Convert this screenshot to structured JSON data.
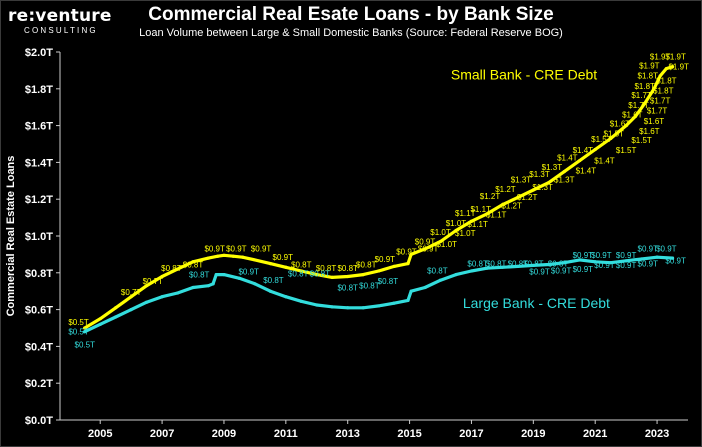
{
  "brand": {
    "name": "re:venture",
    "tagline": "CONSULTING"
  },
  "chart_data": {
    "type": "line",
    "title": "Commercial Real Esate Loans - by Bank Size",
    "subtitle": "Loan Volume between Large & Small Domestic Banks (Source: Federal Reserve BOG)",
    "xlabel": "",
    "ylabel": "Commercial Real Estate Loans",
    "ylim": [
      0,
      2.0
    ],
    "xlim": [
      2003.7,
      2024.0
    ],
    "yticks": [
      0,
      0.2,
      0.4,
      0.6,
      0.8,
      1.0,
      1.2,
      1.4,
      1.6,
      1.8,
      2.0
    ],
    "ytick_labels": [
      "$0.0T",
      "$0.2T",
      "$0.4T",
      "$0.6T",
      "$0.8T",
      "$1.0T",
      "$1.2T",
      "$1.4T",
      "$1.6T",
      "$1.8T",
      "$2.0T"
    ],
    "xticks": [
      2005,
      2007,
      2009,
      2011,
      2013,
      2015,
      2017,
      2019,
      2021,
      2023
    ],
    "xtick_labels": [
      "2005",
      "2007",
      "2009",
      "2011",
      "2013",
      "2015",
      "2017",
      "2019",
      "2021",
      "2023"
    ],
    "grid": false,
    "series": [
      {
        "name": "Small Bank - CRE Debt",
        "color": "#ffff00",
        "x": [
          2004.5,
          2005.0,
          2005.5,
          2006.0,
          2006.5,
          2007.0,
          2007.5,
          2008.0,
          2008.5,
          2008.8,
          2009.0,
          2009.3,
          2009.6,
          2010.0,
          2010.5,
          2011.0,
          2011.5,
          2012.0,
          2012.5,
          2013.0,
          2013.5,
          2014.0,
          2014.5,
          2014.95,
          2015.05,
          2015.5,
          2016.0,
          2016.5,
          2017.0,
          2017.5,
          2018.0,
          2018.5,
          2019.0,
          2019.5,
          2020.0,
          2020.5,
          2021.0,
          2021.5,
          2022.0,
          2022.3,
          2022.6,
          2022.9,
          2023.1,
          2023.3,
          2023.5
        ],
        "values": [
          0.5,
          0.55,
          0.61,
          0.67,
          0.73,
          0.78,
          0.82,
          0.86,
          0.88,
          0.89,
          0.895,
          0.89,
          0.885,
          0.87,
          0.85,
          0.83,
          0.81,
          0.79,
          0.775,
          0.78,
          0.79,
          0.81,
          0.835,
          0.85,
          0.9,
          0.93,
          0.97,
          1.03,
          1.08,
          1.12,
          1.17,
          1.21,
          1.25,
          1.29,
          1.35,
          1.41,
          1.47,
          1.53,
          1.6,
          1.65,
          1.72,
          1.8,
          1.87,
          1.91,
          1.92
        ]
      },
      {
        "name": "Large Bank - CRE Debt",
        "color": "#33dddd",
        "x": [
          2004.5,
          2005.0,
          2005.5,
          2006.0,
          2006.5,
          2007.0,
          2007.5,
          2008.0,
          2008.5,
          2008.65,
          2008.75,
          2009.0,
          2009.5,
          2010.0,
          2010.5,
          2011.0,
          2011.5,
          2012.0,
          2012.5,
          2013.0,
          2013.5,
          2014.0,
          2014.5,
          2014.95,
          2015.05,
          2015.5,
          2016.0,
          2016.5,
          2017.0,
          2017.5,
          2018.0,
          2018.5,
          2019.0,
          2019.5,
          2020.0,
          2020.5,
          2021.0,
          2021.5,
          2022.0,
          2022.5,
          2023.0,
          2023.5
        ],
        "values": [
          0.48,
          0.52,
          0.56,
          0.6,
          0.64,
          0.67,
          0.69,
          0.72,
          0.73,
          0.74,
          0.79,
          0.79,
          0.77,
          0.74,
          0.7,
          0.67,
          0.645,
          0.625,
          0.615,
          0.61,
          0.61,
          0.62,
          0.635,
          0.65,
          0.7,
          0.72,
          0.76,
          0.79,
          0.81,
          0.825,
          0.83,
          0.835,
          0.84,
          0.845,
          0.855,
          0.87,
          0.86,
          0.855,
          0.865,
          0.875,
          0.885,
          0.88
        ]
      }
    ],
    "annotations": [
      {
        "text": "Small Bank - CRE Debt",
        "series": 0,
        "x": 2018.7,
        "y": 1.85
      },
      {
        "text": "Large Bank - CRE Debt",
        "series": 1,
        "x": 2019.1,
        "y": 0.61
      }
    ],
    "data_labels": [
      {
        "series": 0,
        "x": 2004.3,
        "y": 0.515,
        "text": "$0.5T"
      },
      {
        "series": 0,
        "x": 2006.0,
        "y": 0.68,
        "text": "$0.7T"
      },
      {
        "series": 0,
        "x": 2006.7,
        "y": 0.74,
        "text": "$0.7T"
      },
      {
        "series": 0,
        "x": 2007.3,
        "y": 0.81,
        "text": "$0.8T"
      },
      {
        "series": 0,
        "x": 2008.0,
        "y": 0.83,
        "text": "$0.8T"
      },
      {
        "series": 0,
        "x": 2008.7,
        "y": 0.915,
        "text": "$0.9T"
      },
      {
        "series": 0,
        "x": 2009.4,
        "y": 0.915,
        "text": "$0.9T"
      },
      {
        "series": 0,
        "x": 2010.2,
        "y": 0.915,
        "text": "$0.9T"
      },
      {
        "series": 0,
        "x": 2010.9,
        "y": 0.87,
        "text": "$0.9T"
      },
      {
        "series": 0,
        "x": 2011.5,
        "y": 0.83,
        "text": "$0.8T"
      },
      {
        "series": 0,
        "x": 2012.3,
        "y": 0.81,
        "text": "$0.8T"
      },
      {
        "series": 0,
        "x": 2013.0,
        "y": 0.81,
        "text": "$0.8T"
      },
      {
        "series": 0,
        "x": 2013.6,
        "y": 0.83,
        "text": "$0.8T"
      },
      {
        "series": 0,
        "x": 2014.2,
        "y": 0.86,
        "text": "$0.9T"
      },
      {
        "series": 0,
        "x": 2014.9,
        "y": 0.9,
        "text": "$0.9T"
      },
      {
        "series": 0,
        "x": 2015.5,
        "y": 0.955,
        "text": "$0.9T"
      },
      {
        "series": 0,
        "x": 2016.0,
        "y": 1.005,
        "text": "$1.0T"
      },
      {
        "series": 0,
        "x": 2016.5,
        "y": 1.055,
        "text": "$1.0T"
      },
      {
        "series": 0,
        "x": 2016.8,
        "y": 1.11,
        "text": "$1.1T"
      },
      {
        "series": 0,
        "x": 2017.3,
        "y": 1.13,
        "text": "$1.1T"
      },
      {
        "series": 0,
        "x": 2017.6,
        "y": 1.2,
        "text": "$1.2T"
      },
      {
        "series": 0,
        "x": 2018.1,
        "y": 1.24,
        "text": "$1.2T"
      },
      {
        "series": 0,
        "x": 2018.6,
        "y": 1.29,
        "text": "$1.3T"
      },
      {
        "series": 0,
        "x": 2019.2,
        "y": 1.32,
        "text": "$1.3T"
      },
      {
        "series": 0,
        "x": 2019.6,
        "y": 1.36,
        "text": "$1.3T"
      },
      {
        "series": 0,
        "x": 2020.1,
        "y": 1.41,
        "text": "$1.4T"
      },
      {
        "series": 0,
        "x": 2020.6,
        "y": 1.45,
        "text": "$1.4T"
      },
      {
        "series": 0,
        "x": 2021.2,
        "y": 1.51,
        "text": "$1.5T"
      },
      {
        "series": 0,
        "x": 2021.6,
        "y": 1.54,
        "text": "$1.5T"
      },
      {
        "series": 0,
        "x": 2021.8,
        "y": 1.595,
        "text": "$1.6T"
      },
      {
        "series": 0,
        "x": 2022.2,
        "y": 1.645,
        "text": "$1.6T"
      },
      {
        "series": 0,
        "x": 2022.4,
        "y": 1.695,
        "text": "$1.7T"
      },
      {
        "series": 0,
        "x": 2022.5,
        "y": 1.75,
        "text": "$1.7T"
      },
      {
        "series": 0,
        "x": 2022.6,
        "y": 1.8,
        "text": "$1.8T"
      },
      {
        "series": 0,
        "x": 2022.7,
        "y": 1.855,
        "text": "$1.8T"
      },
      {
        "series": 0,
        "x": 2022.75,
        "y": 1.91,
        "text": "$1.9T"
      },
      {
        "series": 0,
        "x": 2023.1,
        "y": 1.96,
        "text": "$1.9T"
      },
      {
        "series": 0,
        "x": 2023.6,
        "y": 1.96,
        "text": "$1.9T"
      },
      {
        "series": 0,
        "x": 2023.7,
        "y": 1.905,
        "text": "$1.9T"
      },
      {
        "series": 0,
        "x": 2023.3,
        "y": 1.83,
        "text": "$1.8T"
      },
      {
        "series": 0,
        "x": 2023.2,
        "y": 1.775,
        "text": "$1.8T"
      },
      {
        "series": 0,
        "x": 2023.1,
        "y": 1.72,
        "text": "$1.7T"
      },
      {
        "series": 0,
        "x": 2023.0,
        "y": 1.665,
        "text": "$1.7T"
      },
      {
        "series": 0,
        "x": 2022.9,
        "y": 1.61,
        "text": "$1.6T"
      },
      {
        "series": 0,
        "x": 2022.75,
        "y": 1.555,
        "text": "$1.6T"
      },
      {
        "series": 0,
        "x": 2022.5,
        "y": 1.505,
        "text": "$1.5T"
      },
      {
        "series": 0,
        "x": 2022.0,
        "y": 1.45,
        "text": "$1.5T"
      },
      {
        "series": 0,
        "x": 2021.3,
        "y": 1.395,
        "text": "$1.4T"
      },
      {
        "series": 0,
        "x": 2020.7,
        "y": 1.34,
        "text": "$1.4T"
      },
      {
        "series": 0,
        "x": 2020.0,
        "y": 1.29,
        "text": "$1.3T"
      },
      {
        "series": 0,
        "x": 2019.3,
        "y": 1.25,
        "text": "$1.3T"
      },
      {
        "series": 0,
        "x": 2018.8,
        "y": 1.195,
        "text": "$1.2T"
      },
      {
        "series": 0,
        "x": 2018.3,
        "y": 1.15,
        "text": "$1.2T"
      },
      {
        "series": 0,
        "x": 2017.8,
        "y": 1.1,
        "text": "$1.1T"
      },
      {
        "series": 0,
        "x": 2017.2,
        "y": 1.05,
        "text": "$1.1T"
      },
      {
        "series": 0,
        "x": 2016.8,
        "y": 1.0,
        "text": "$1.0T"
      },
      {
        "series": 0,
        "x": 2016.2,
        "y": 0.94,
        "text": "$1.0T"
      },
      {
        "series": 0,
        "x": 2015.6,
        "y": 0.915,
        "text": "$0.9T"
      },
      {
        "series": 1,
        "x": 2004.3,
        "y": 0.465,
        "text": "$0.5T"
      },
      {
        "series": 1,
        "x": 2008.2,
        "y": 0.775,
        "text": "$0.8T"
      },
      {
        "series": 1,
        "x": 2009.8,
        "y": 0.79,
        "text": "$0.9T"
      },
      {
        "series": 1,
        "x": 2010.6,
        "y": 0.745,
        "text": "$0.8T"
      },
      {
        "series": 1,
        "x": 2011.4,
        "y": 0.78,
        "text": "$0.8T"
      },
      {
        "series": 1,
        "x": 2012.1,
        "y": 0.78,
        "text": "$0.8T"
      },
      {
        "series": 1,
        "x": 2013.0,
        "y": 0.705,
        "text": "$0.8T"
      },
      {
        "series": 1,
        "x": 2013.7,
        "y": 0.715,
        "text": "$0.8T"
      },
      {
        "series": 1,
        "x": 2014.3,
        "y": 0.74,
        "text": "$0.8T"
      },
      {
        "series": 1,
        "x": 2015.9,
        "y": 0.795,
        "text": "$0.8T"
      },
      {
        "series": 1,
        "x": 2017.2,
        "y": 0.835,
        "text": "$0.8T"
      },
      {
        "series": 1,
        "x": 2017.8,
        "y": 0.835,
        "text": "$0.8T"
      },
      {
        "series": 1,
        "x": 2018.5,
        "y": 0.835,
        "text": "$0.8T"
      },
      {
        "series": 1,
        "x": 2019.0,
        "y": 0.835,
        "text": "$0.8T"
      },
      {
        "series": 1,
        "x": 2019.8,
        "y": 0.835,
        "text": "$0.8T"
      },
      {
        "series": 1,
        "x": 2020.6,
        "y": 0.88,
        "text": "$0.9T"
      },
      {
        "series": 1,
        "x": 2021.2,
        "y": 0.88,
        "text": "$0.9T"
      },
      {
        "series": 1,
        "x": 2022.0,
        "y": 0.88,
        "text": "$0.9T"
      },
      {
        "series": 1,
        "x": 2022.7,
        "y": 0.915,
        "text": "$0.9T"
      },
      {
        "series": 1,
        "x": 2023.3,
        "y": 0.915,
        "text": "$0.9T"
      },
      {
        "series": 1,
        "x": 2019.2,
        "y": 0.79,
        "text": "$0.9T"
      },
      {
        "series": 1,
        "x": 2019.9,
        "y": 0.795,
        "text": "$0.9T"
      },
      {
        "series": 1,
        "x": 2020.6,
        "y": 0.805,
        "text": "$0.9T"
      },
      {
        "series": 1,
        "x": 2021.3,
        "y": 0.825,
        "text": "$0.9T"
      },
      {
        "series": 1,
        "x": 2022.0,
        "y": 0.825,
        "text": "$0.9T"
      },
      {
        "series": 1,
        "x": 2022.7,
        "y": 0.835,
        "text": "$0.9T"
      },
      {
        "series": 1,
        "x": 2023.6,
        "y": 0.85,
        "text": "$0.9T"
      },
      {
        "series": 1,
        "x": 2004.5,
        "y": 0.395,
        "text": "$0.5T"
      }
    ]
  }
}
